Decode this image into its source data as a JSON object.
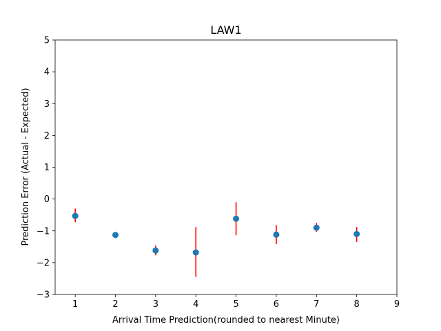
{
  "chart_data": {
    "type": "scatter",
    "title": "LAW1",
    "xlabel": "Arrival Time Prediction(rounded to nearest Minute)",
    "ylabel": "Prediction Error (Actual - Expected)",
    "xlim": [
      0.5,
      9
    ],
    "ylim": [
      -3,
      5
    ],
    "x_ticks": [
      1,
      2,
      3,
      4,
      5,
      6,
      7,
      8,
      9
    ],
    "y_ticks": [
      -3,
      -2,
      -1,
      0,
      1,
      2,
      3,
      4,
      5
    ],
    "grid": false,
    "series": [
      {
        "x": [
          1,
          2,
          3,
          4,
          5,
          6,
          7,
          8
        ],
        "y": [
          -0.53,
          -1.13,
          -1.62,
          -1.68,
          -0.62,
          -1.12,
          -0.9,
          -1.1
        ],
        "error_lower": [
          0.2,
          0.0,
          0.15,
          0.77,
          0.52,
          0.3,
          0.13,
          0.25
        ],
        "error_upper": [
          0.23,
          0.0,
          0.16,
          0.8,
          0.52,
          0.3,
          0.15,
          0.22
        ],
        "marker_color": "#1f77b4",
        "error_color": "#ff0000"
      }
    ]
  }
}
